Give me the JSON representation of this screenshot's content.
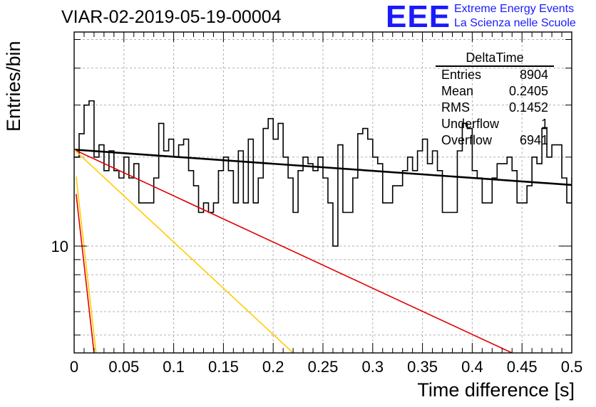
{
  "title": "VIAR-02-2019-05-19-00004",
  "logo": {
    "text": "EEE",
    "line1": "Extreme Energy Events",
    "line2": "La Scienza nelle Scuole",
    "color": "#1a1aff"
  },
  "stats": {
    "title": "DeltaTime",
    "rows": [
      {
        "label": "Entries",
        "value": "8904"
      },
      {
        "label": "Mean",
        "value": "0.2405"
      },
      {
        "label": "RMS",
        "value": "0.1452"
      },
      {
        "label": "Underflow",
        "value": "1"
      },
      {
        "label": "Overflow",
        "value": "6941"
      }
    ]
  },
  "chart_data": {
    "type": "line",
    "title": "VIAR-02-2019-05-19-00004",
    "xlabel": "Time difference [s]",
    "ylabel": "Entries/bin",
    "xlim": [
      0,
      0.5
    ],
    "ylim": [
      4.35,
      53
    ],
    "yscale": "log",
    "grid": true,
    "xticks": [
      "0",
      "0.05",
      "0.1",
      "0.15",
      "0.2",
      "0.25",
      "0.3",
      "0.35",
      "0.4",
      "0.45",
      "0.5"
    ],
    "yticks": [
      {
        "value": 10,
        "label": "10"
      }
    ],
    "histogram": {
      "bin_width": 0.005,
      "values": [
        20,
        24,
        30,
        31,
        20,
        22,
        18,
        21,
        18,
        17,
        20,
        17,
        19,
        14,
        14,
        14,
        17,
        26,
        21,
        23,
        20,
        22,
        23,
        18,
        16,
        13,
        14,
        13,
        14,
        18,
        20,
        18,
        14,
        21,
        14,
        23,
        14,
        17,
        25,
        27,
        23,
        26,
        20,
        17,
        13,
        18,
        20,
        19,
        18,
        20,
        17,
        14,
        10,
        22,
        13,
        13,
        17,
        24,
        25,
        23,
        20,
        19,
        14,
        14,
        16,
        16,
        18,
        20,
        18,
        21,
        23,
        19,
        21,
        18,
        13,
        13,
        13,
        21,
        26,
        25,
        18,
        17,
        14,
        14,
        17,
        19,
        19,
        20,
        18,
        14,
        14,
        16,
        20,
        19,
        25,
        20,
        22,
        22,
        17,
        14,
        17,
        13,
        16,
        13,
        13,
        14,
        21,
        16,
        17,
        18,
        14,
        19,
        13,
        17,
        22,
        16,
        19,
        19,
        17,
        13,
        16,
        20,
        20,
        14,
        14,
        11,
        16,
        16,
        16,
        21,
        16,
        13,
        17,
        16,
        18,
        15,
        18,
        13,
        20,
        15,
        16,
        12,
        15,
        19,
        22,
        17,
        20,
        16,
        14,
        20,
        15,
        18,
        12,
        15,
        16,
        18,
        18,
        17,
        19,
        14,
        14,
        16,
        13,
        17,
        14,
        18,
        14,
        18,
        15,
        15,
        13,
        16,
        13,
        13,
        16,
        15,
        10,
        15,
        20,
        14,
        17,
        17,
        20,
        18,
        13,
        16,
        16,
        16,
        9,
        16,
        16,
        16,
        19,
        15,
        16,
        12,
        13,
        16,
        15,
        17,
        16,
        18,
        19,
        17,
        20,
        15,
        12,
        16,
        14,
        16,
        14,
        14,
        15,
        16,
        16,
        13,
        18,
        16,
        13,
        16,
        17,
        14,
        16,
        16,
        19,
        14,
        12,
        12,
        13,
        14,
        14,
        16,
        16,
        14,
        16,
        17,
        15,
        12,
        16,
        17,
        14,
        15,
        12,
        17,
        15,
        13,
        13,
        16,
        13,
        15,
        16,
        15,
        15,
        13,
        13,
        15,
        14,
        17,
        17,
        14,
        15,
        13,
        14,
        12,
        14,
        15,
        14,
        14,
        12,
        12,
        12,
        15,
        14,
        15,
        17,
        14,
        16,
        13,
        14,
        11,
        13,
        16,
        15,
        14,
        14,
        13,
        14,
        14,
        13,
        13,
        15,
        14,
        14,
        12,
        13,
        14,
        14,
        13,
        13,
        14,
        14,
        14,
        12,
        12,
        14,
        15,
        14,
        16,
        13,
        13,
        14,
        15,
        13,
        14,
        13,
        13,
        13,
        12,
        15,
        16,
        15,
        14,
        14,
        15,
        14,
        15,
        15,
        15,
        12,
        13,
        15,
        14,
        14,
        15,
        14,
        15,
        13,
        13,
        14,
        12,
        14,
        13,
        15,
        13,
        13,
        14,
        15,
        15,
        14,
        13,
        12,
        14,
        14,
        15,
        15,
        14,
        14,
        13,
        16,
        14,
        16,
        13,
        14,
        17,
        14,
        12,
        12,
        13,
        16,
        14,
        14,
        15,
        15,
        13,
        14,
        14,
        14,
        14,
        13,
        13,
        14,
        13,
        13,
        13,
        15,
        13,
        12,
        14,
        14,
        13,
        13,
        12,
        13,
        14,
        15,
        13,
        14,
        12,
        13,
        16,
        13,
        15,
        14,
        13,
        12,
        13,
        13,
        14,
        14,
        14,
        15,
        14,
        14,
        14,
        13,
        15,
        15,
        14,
        14,
        15,
        14,
        13,
        13,
        14,
        14,
        14,
        14,
        14,
        14,
        14,
        14,
        14,
        13,
        14,
        13,
        15,
        14,
        14,
        14,
        13,
        13,
        14,
        14,
        14,
        14,
        13,
        14,
        14,
        14,
        14,
        14,
        14,
        14,
        13,
        13,
        14,
        13,
        14,
        13,
        14,
        14,
        14,
        14,
        13,
        14,
        14,
        14,
        14,
        13,
        13,
        14,
        14,
        14,
        13,
        14,
        14,
        14,
        13,
        13,
        14,
        14,
        14,
        14,
        14,
        13,
        13,
        14,
        14
      ]
    },
    "series": [
      {
        "color": "#000000",
        "x": [
          0,
          0.5
        ],
        "y": [
          21.2,
          16.1
        ]
      },
      {
        "color": "#e00000",
        "x": [
          0,
          0.44
        ],
        "y": [
          21.2,
          4.35
        ]
      },
      {
        "color": "#ffcc00",
        "x": [
          0,
          0.22
        ],
        "y": [
          21.2,
          4.35
        ]
      },
      {
        "color": "#ffcc00",
        "x": [
          0.002,
          0.022
        ],
        "y": [
          17.2,
          4.35
        ]
      },
      {
        "color": "#e00000",
        "x": [
          0.002,
          0.02
        ],
        "y": [
          15.0,
          4.35
        ]
      }
    ]
  }
}
